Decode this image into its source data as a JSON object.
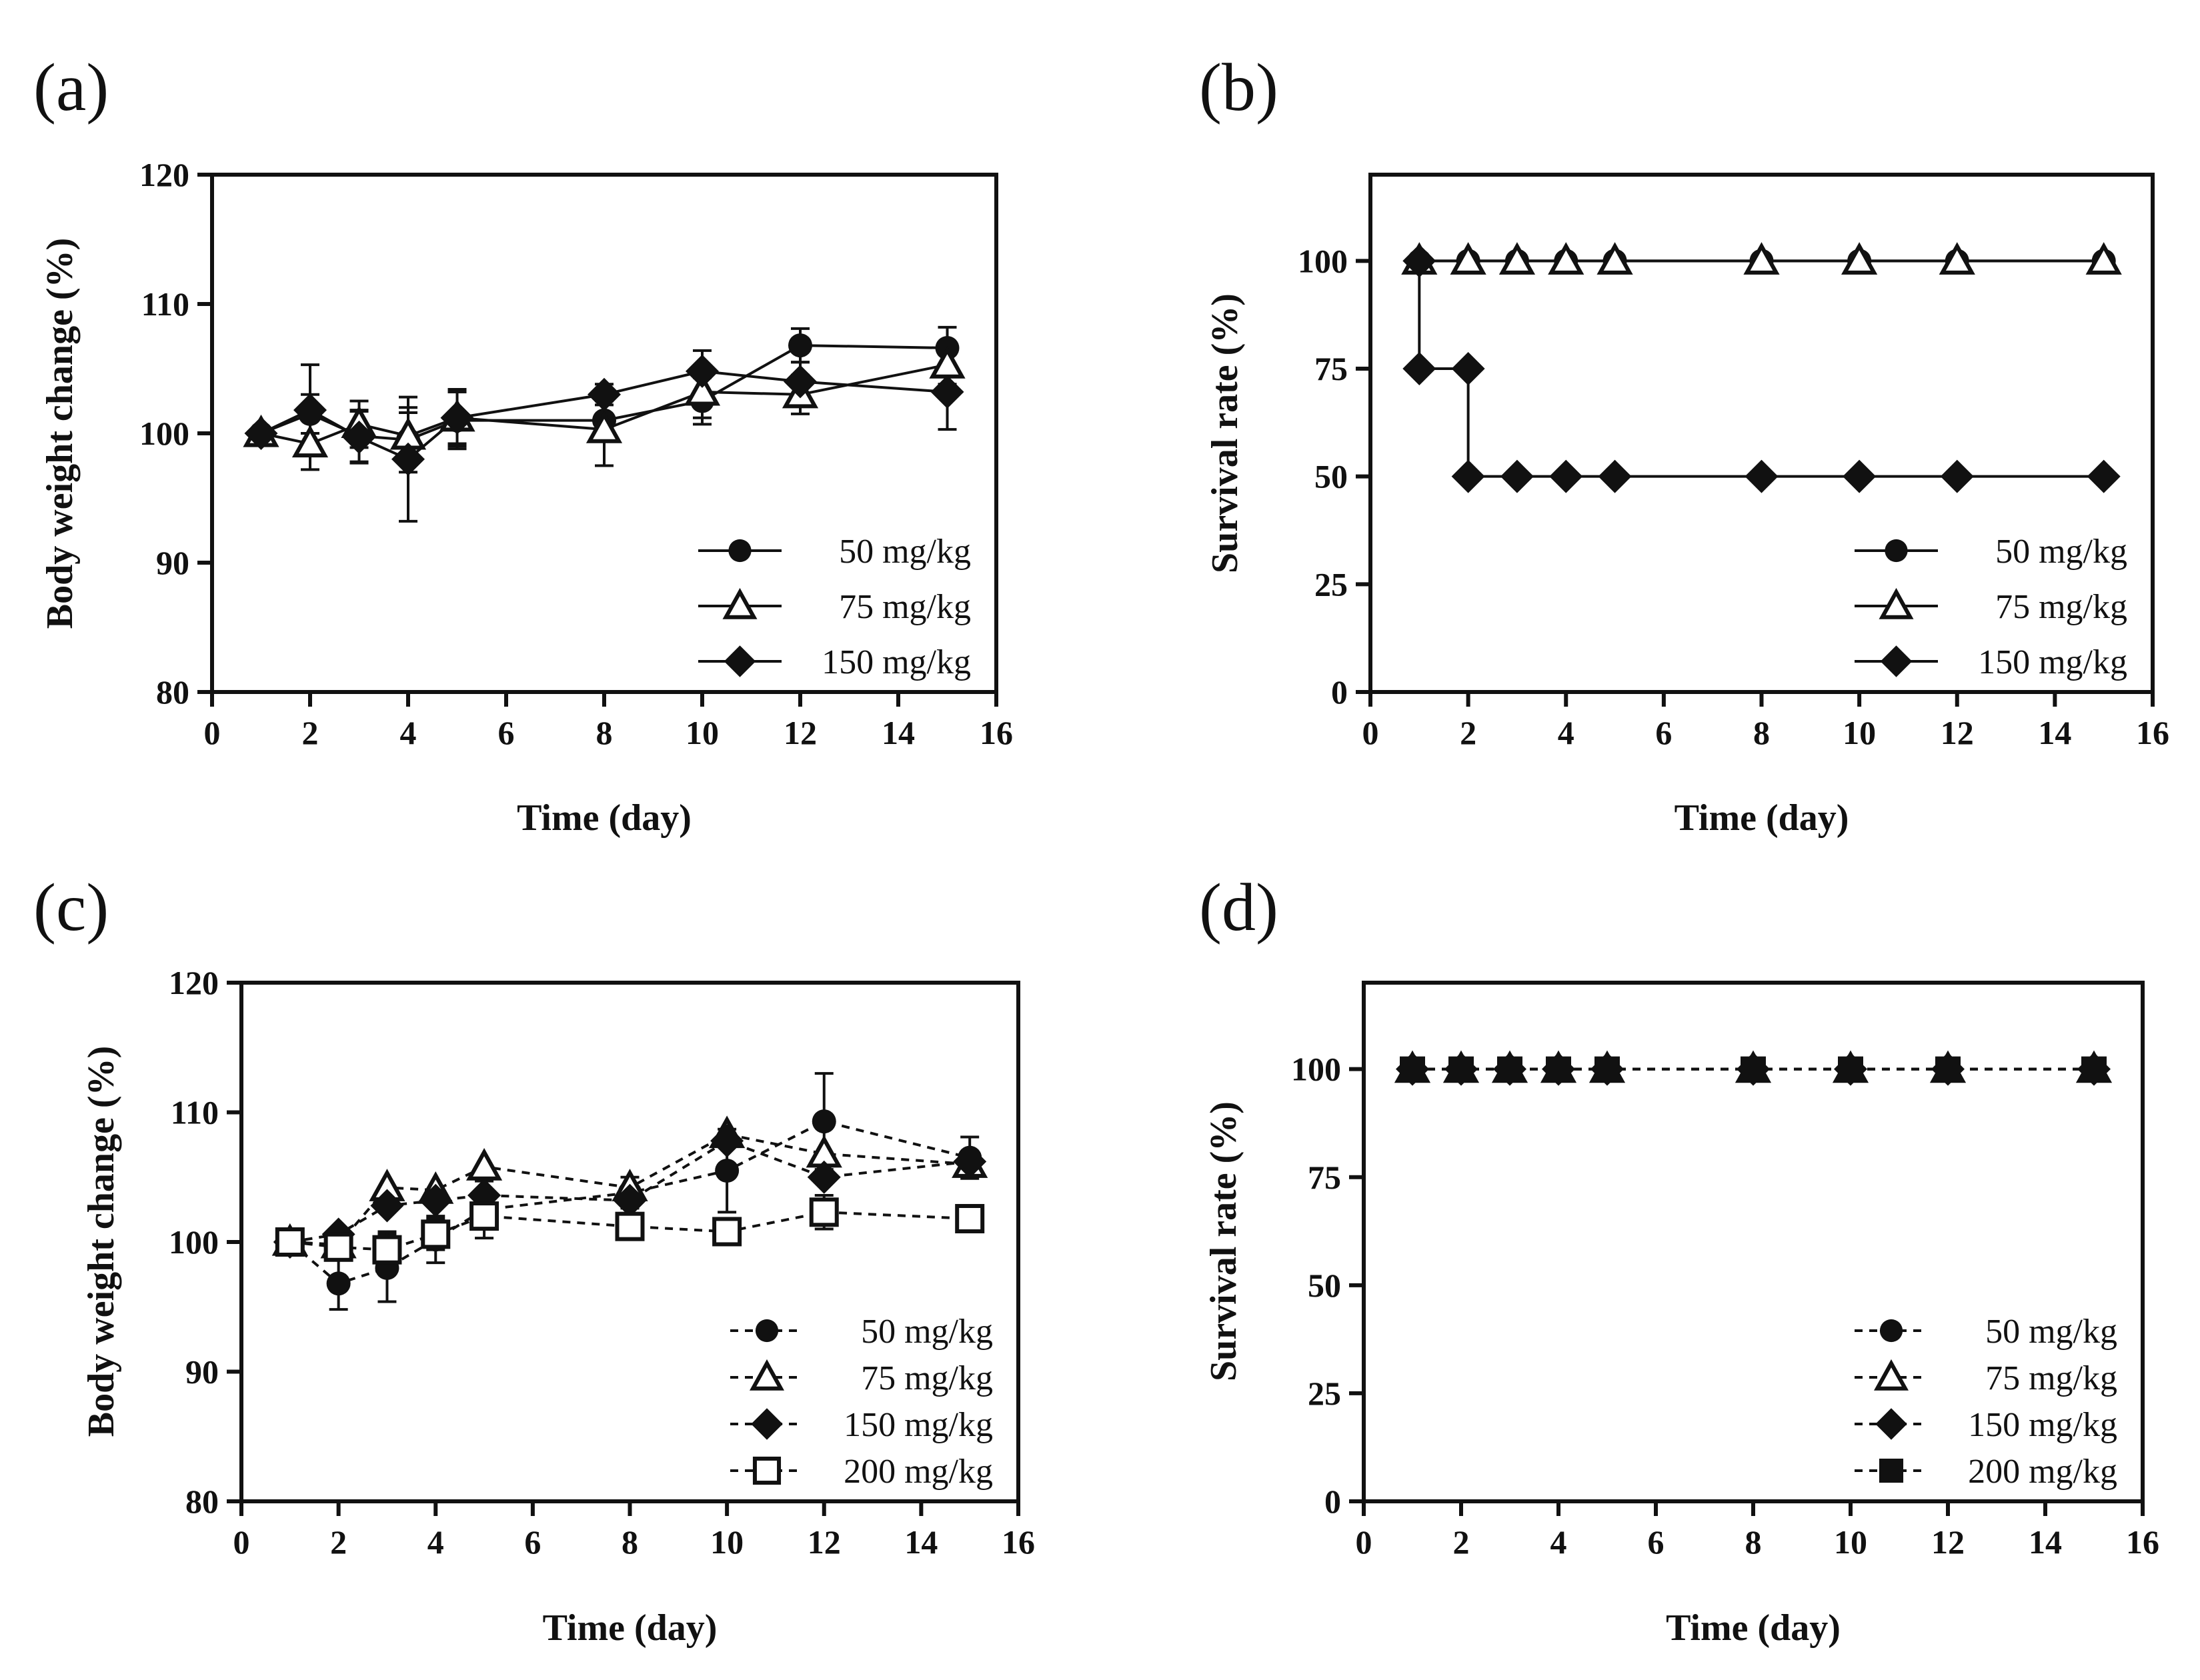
{
  "chart_data": [
    {
      "panel": "(a)",
      "type": "line",
      "xlabel": "Time (day)",
      "ylabel": "Body weight change (%)",
      "xlim": [
        0,
        16
      ],
      "ylim": [
        80,
        120
      ],
      "xticks": [
        0,
        2,
        4,
        6,
        8,
        10,
        12,
        14,
        16
      ],
      "yticks": [
        80,
        90,
        100,
        110,
        120
      ],
      "legend_position": "bottom-right",
      "line_style": "solid",
      "grid": false,
      "series": [
        {
          "name": "50 mg/kg",
          "marker": "circle",
          "x": [
            1,
            2,
            3,
            4,
            5,
            8,
            10,
            12,
            15
          ],
          "y": [
            100,
            101.5,
            99.8,
            99.5,
            101,
            101,
            102.5,
            106.8,
            106.6
          ],
          "err": [
            0.4,
            1.5,
            2.0,
            2.5,
            2.2,
            1.5,
            1.8,
            1.3,
            1.6
          ]
        },
        {
          "name": "75 mg/kg",
          "marker": "triangle-open",
          "x": [
            1,
            2,
            3,
            4,
            5,
            8,
            10,
            12,
            15
          ],
          "y": [
            100,
            99.2,
            100.7,
            99.8,
            101.2,
            100.3,
            103.2,
            103,
            105.3
          ],
          "err": [
            0.4,
            2.0,
            1.8,
            1.8,
            2.0,
            2.8,
            2.0,
            1.5,
            1.5
          ]
        },
        {
          "name": "150 mg/kg",
          "marker": "diamond",
          "x": [
            1,
            2,
            3,
            4,
            5,
            8,
            10,
            12,
            15
          ],
          "y": [
            100,
            101.8,
            99.7,
            98,
            101.2,
            103,
            104.8,
            104,
            103.2
          ],
          "err": [
            0.4,
            3.5,
            2.0,
            4.8,
            2.2,
            0.8,
            1.6,
            1.5,
            2.9
          ]
        }
      ]
    },
    {
      "panel": "(b)",
      "type": "line",
      "xlabel": "Time (day)",
      "ylabel": "Survival rate (%)",
      "xlim": [
        0,
        16
      ],
      "ylim": [
        0,
        120
      ],
      "xticks": [
        0,
        2,
        4,
        6,
        8,
        10,
        12,
        14,
        16
      ],
      "yticks": [
        0,
        25,
        50,
        75,
        100
      ],
      "legend_position": "bottom-right",
      "line_style": "solid-step",
      "grid": false,
      "series": [
        {
          "name": "50 mg/kg",
          "marker": "circle",
          "x": [
            1,
            2,
            3,
            4,
            5,
            8,
            10,
            12,
            15
          ],
          "y": [
            100,
            100,
            100,
            100,
            100,
            100,
            100,
            100,
            100
          ]
        },
        {
          "name": "75 mg/kg",
          "marker": "triangle-open",
          "x": [
            1,
            2,
            3,
            4,
            5,
            8,
            10,
            12,
            15
          ],
          "y": [
            100,
            100,
            100,
            100,
            100,
            100,
            100,
            100,
            100
          ]
        },
        {
          "name": "150 mg/kg",
          "marker": "diamond",
          "x": [
            1,
            1,
            2,
            2,
            3,
            4,
            5,
            8,
            10,
            12,
            15
          ],
          "y": [
            100,
            75,
            75,
            50,
            50,
            50,
            50,
            50,
            50,
            50,
            50
          ]
        }
      ]
    },
    {
      "panel": "(c)",
      "type": "line",
      "xlabel": "Time (day)",
      "ylabel": "Body weight change (%)",
      "xlim": [
        0,
        16
      ],
      "ylim": [
        80,
        120
      ],
      "xticks": [
        0,
        2,
        4,
        6,
        8,
        10,
        12,
        14,
        16
      ],
      "yticks": [
        80,
        90,
        100,
        110,
        120
      ],
      "legend_position": "bottom-right",
      "line_style": "dashed",
      "grid": false,
      "series": [
        {
          "name": "50 mg/kg",
          "marker": "circle",
          "x": [
            1,
            2,
            3,
            4,
            5,
            8,
            10,
            12,
            15
          ],
          "y": [
            100,
            96.8,
            98,
            100.2,
            102.5,
            103.8,
            105.5,
            109.3,
            106.5
          ],
          "err": [
            0.4,
            2.0,
            2.6,
            1.8,
            2.2,
            1.2,
            3.2,
            3.7,
            1.6
          ]
        },
        {
          "name": "75 mg/kg",
          "marker": "triangle-open",
          "x": [
            1,
            2,
            3,
            4,
            5,
            8,
            10,
            12,
            15
          ],
          "y": [
            100,
            99.8,
            104.2,
            104,
            105.8,
            104.2,
            108.3,
            106.8,
            106
          ]
        },
        {
          "name": "150 mg/kg",
          "marker": "diamond",
          "x": [
            1,
            2,
            3,
            4,
            5,
            8,
            10,
            12,
            15
          ],
          "y": [
            100,
            100.6,
            102.8,
            103.2,
            103.6,
            103.2,
            107.8,
            105,
            106.2
          ]
        },
        {
          "name": "200 mg/kg",
          "marker": "square-open",
          "x": [
            1,
            2,
            3,
            4,
            5,
            8,
            10,
            12,
            15
          ],
          "y": [
            100,
            99.6,
            99.4,
            100.6,
            102,
            101.2,
            100.8,
            102.3,
            101.8
          ],
          "err": [
            0.4,
            1.0,
            1.4,
            1.2,
            1.0,
            0.6,
            0.8,
            1.3,
            0.8
          ]
        }
      ]
    },
    {
      "panel": "(d)",
      "type": "line",
      "xlabel": "Time (day)",
      "ylabel": "Survival rate (%)",
      "xlim": [
        0,
        16
      ],
      "ylim": [
        0,
        120
      ],
      "xticks": [
        0,
        2,
        4,
        6,
        8,
        10,
        12,
        14,
        16
      ],
      "yticks": [
        0,
        25,
        50,
        75,
        100
      ],
      "legend_position": "bottom-right",
      "line_style": "dashed",
      "grid": false,
      "series": [
        {
          "name": "50 mg/kg",
          "marker": "circle",
          "x": [
            1,
            2,
            3,
            4,
            5,
            8,
            10,
            12,
            15
          ],
          "y": [
            100,
            100,
            100,
            100,
            100,
            100,
            100,
            100,
            100
          ]
        },
        {
          "name": "75 mg/kg",
          "marker": "triangle-open",
          "x": [
            1,
            2,
            3,
            4,
            5,
            8,
            10,
            12,
            15
          ],
          "y": [
            100,
            100,
            100,
            100,
            100,
            100,
            100,
            100,
            100
          ]
        },
        {
          "name": "150 mg/kg",
          "marker": "diamond",
          "x": [
            1,
            2,
            3,
            4,
            5,
            8,
            10,
            12,
            15
          ],
          "y": [
            100,
            100,
            100,
            100,
            100,
            100,
            100,
            100,
            100
          ]
        },
        {
          "name": "200 mg/kg",
          "marker": "square-filled",
          "x": [
            1,
            2,
            3,
            4,
            5,
            8,
            10,
            12,
            15
          ],
          "y": [
            100,
            100,
            100,
            100,
            100,
            100,
            100,
            100,
            100
          ]
        }
      ]
    }
  ]
}
